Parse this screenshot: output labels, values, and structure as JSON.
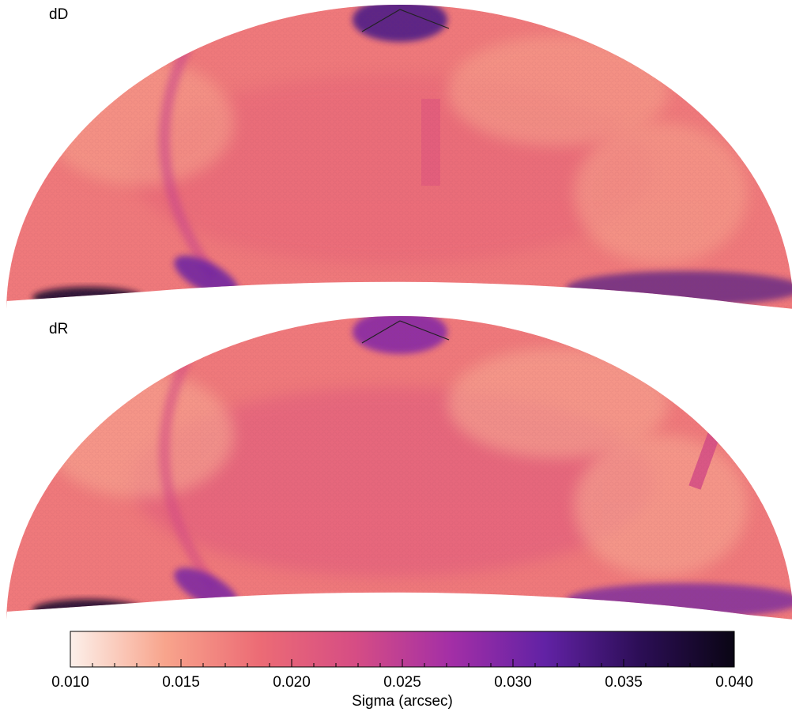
{
  "chart_data": {
    "type": "heatmap",
    "projection": "all-sky elliptical map",
    "panels": [
      {
        "label": "dD",
        "regions": [
          {
            "feature": "background",
            "value": 0.0175
          },
          {
            "feature": "central band",
            "value": 0.0195
          },
          {
            "feature": "low-sigma patches",
            "value": 0.0145
          },
          {
            "feature": "north pole cap",
            "value": 0.033
          },
          {
            "feature": "left arc",
            "value": 0.024
          },
          {
            "feature": "lower-left arc end",
            "value": 0.031
          },
          {
            "feature": "bottom-left corner",
            "value": 0.038
          },
          {
            "feature": "bottom-right edge",
            "value": 0.033
          },
          {
            "feature": "small stripe near pole",
            "value": 0.021
          }
        ]
      },
      {
        "label": "dR",
        "regions": [
          {
            "feature": "background",
            "value": 0.0175
          },
          {
            "feature": "central band",
            "value": 0.021
          },
          {
            "feature": "low-sigma patches",
            "value": 0.014
          },
          {
            "feature": "north pole cap",
            "value": 0.029
          },
          {
            "feature": "left arc",
            "value": 0.023
          },
          {
            "feature": "lower-left arc end",
            "value": 0.03
          },
          {
            "feature": "bottom-left corner",
            "value": 0.038
          },
          {
            "feature": "bottom-right edge",
            "value": 0.031
          },
          {
            "feature": "right stripe",
            "value": 0.023
          }
        ]
      }
    ],
    "colorbar": {
      "title": "Sigma (arcsec)",
      "range": [
        0.01,
        0.04
      ],
      "major_ticks": [
        0.01,
        0.015,
        0.02,
        0.025,
        0.03,
        0.035,
        0.04
      ],
      "tick_labels": [
        "0.010",
        "0.015",
        "0.020",
        "0.025",
        "0.030",
        "0.035",
        "0.040"
      ],
      "colormap_stops": [
        "#fcf0ea",
        "#f8a48c",
        "#ec6b75",
        "#d64d84",
        "#a42fa6",
        "#6222a5",
        "#2c0e56",
        "#0a0514"
      ]
    }
  }
}
